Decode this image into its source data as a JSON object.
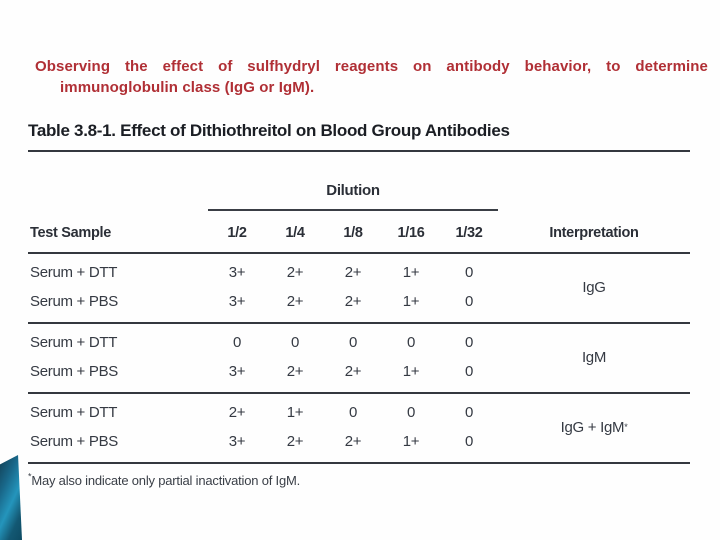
{
  "heading": {
    "line1": "Observing the effect of sulfhydryl reagents on antibody behavior, to determine",
    "line2": "immunoglobulin class (IgG or IgM)."
  },
  "table": {
    "title": "Table 3.8-1. Effect of Dithiothreitol on Blood Group Antibodies",
    "dilution_label": "Dilution",
    "header": {
      "sample": "Test Sample",
      "dilutions": [
        "1/2",
        "1/4",
        "1/8",
        "1/16",
        "1/32"
      ],
      "interpretation": "Interpretation"
    },
    "groups": [
      {
        "rows": [
          {
            "sample": "Serum + DTT",
            "values": [
              "3+",
              "2+",
              "2+",
              "1+",
              "0"
            ]
          },
          {
            "sample": "Serum + PBS",
            "values": [
              "3+",
              "2+",
              "2+",
              "1+",
              "0"
            ]
          }
        ],
        "interpretation": "IgG",
        "marker": ""
      },
      {
        "rows": [
          {
            "sample": "Serum + DTT",
            "values": [
              "0",
              "0",
              "0",
              "0",
              "0"
            ]
          },
          {
            "sample": "Serum + PBS",
            "values": [
              "3+",
              "2+",
              "2+",
              "1+",
              "0"
            ]
          }
        ],
        "interpretation": "IgM",
        "marker": ""
      },
      {
        "rows": [
          {
            "sample": "Serum + DTT",
            "values": [
              "2+",
              "1+",
              "0",
              "0",
              "0"
            ]
          },
          {
            "sample": "Serum + PBS",
            "values": [
              "3+",
              "2+",
              "2+",
              "1+",
              "0"
            ]
          }
        ],
        "interpretation": "IgG + IgM",
        "marker": "*"
      }
    ],
    "footnote": {
      "marker": "*",
      "text": "May also indicate only partial inactivation of IgM."
    }
  },
  "colors": {
    "heading_red": "#b02f35",
    "table_ink": "#353a43",
    "rule": "#34383f",
    "accent_teal": "#2495bc"
  }
}
